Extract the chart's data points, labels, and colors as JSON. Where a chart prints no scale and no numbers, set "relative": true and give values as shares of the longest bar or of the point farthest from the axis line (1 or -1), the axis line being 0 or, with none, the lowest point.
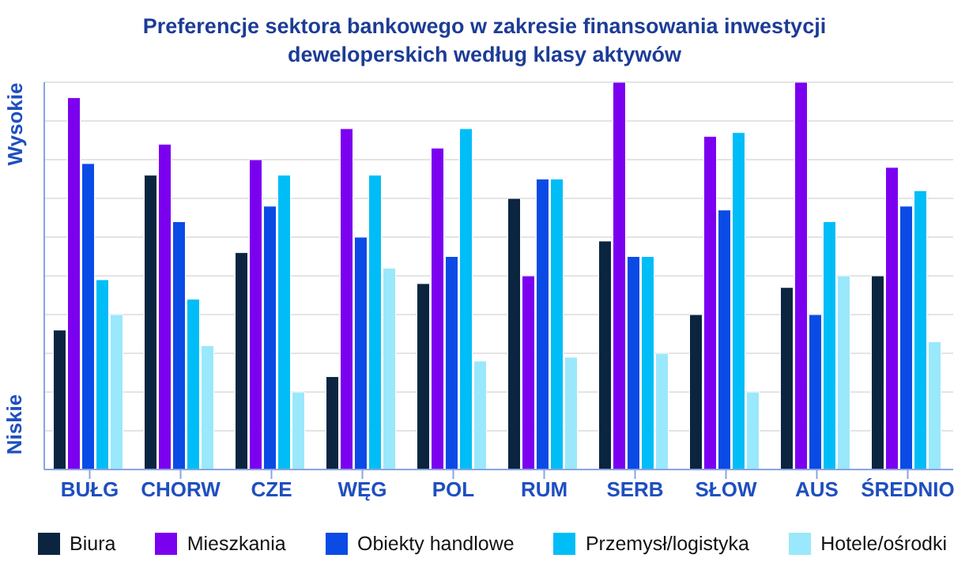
{
  "chart_data": {
    "type": "bar",
    "title": "Preferencje sektora bankowego w zakresie finansowania inwestycji deweloperskich według klasy aktywów",
    "relative": true,
    "grid": "y",
    "legend": "bottom",
    "annotations": [
      "Wysokie",
      "Niskie"
    ],
    "categories": [
      "BUŁG",
      "CHORW",
      "CZE",
      "WĘG",
      "POL",
      "RUM",
      "SERB",
      "SŁOW",
      "AUS",
      "ŚREDNIO"
    ],
    "series": [
      {
        "name": "Biura",
        "color": "#0b2540",
        "values": [
          0.36,
          0.76,
          0.56,
          0.24,
          0.48,
          0.7,
          0.59,
          0.4,
          0.47,
          0.5
        ]
      },
      {
        "name": "Mieszkania",
        "color": "#7b00f0",
        "values": [
          0.96,
          0.84,
          0.8,
          0.88,
          0.83,
          0.5,
          1.0,
          0.86,
          1.0,
          0.78
        ]
      },
      {
        "name": "Obiekty handlowe",
        "color": "#0a4be6",
        "values": [
          0.79,
          0.64,
          0.68,
          0.6,
          0.55,
          0.75,
          0.55,
          0.67,
          0.4,
          0.68
        ]
      },
      {
        "name": "Przemysł/logistyka",
        "color": "#00bdf7",
        "values": [
          0.49,
          0.44,
          0.76,
          0.76,
          0.88,
          0.75,
          0.55,
          0.87,
          0.64,
          0.72
        ]
      },
      {
        "name": "Hotele/ośrodki",
        "color": "#9ae8fb",
        "values": [
          0.4,
          0.32,
          0.2,
          0.52,
          0.28,
          0.29,
          0.3,
          0.2,
          0.5,
          0.33
        ]
      }
    ]
  }
}
